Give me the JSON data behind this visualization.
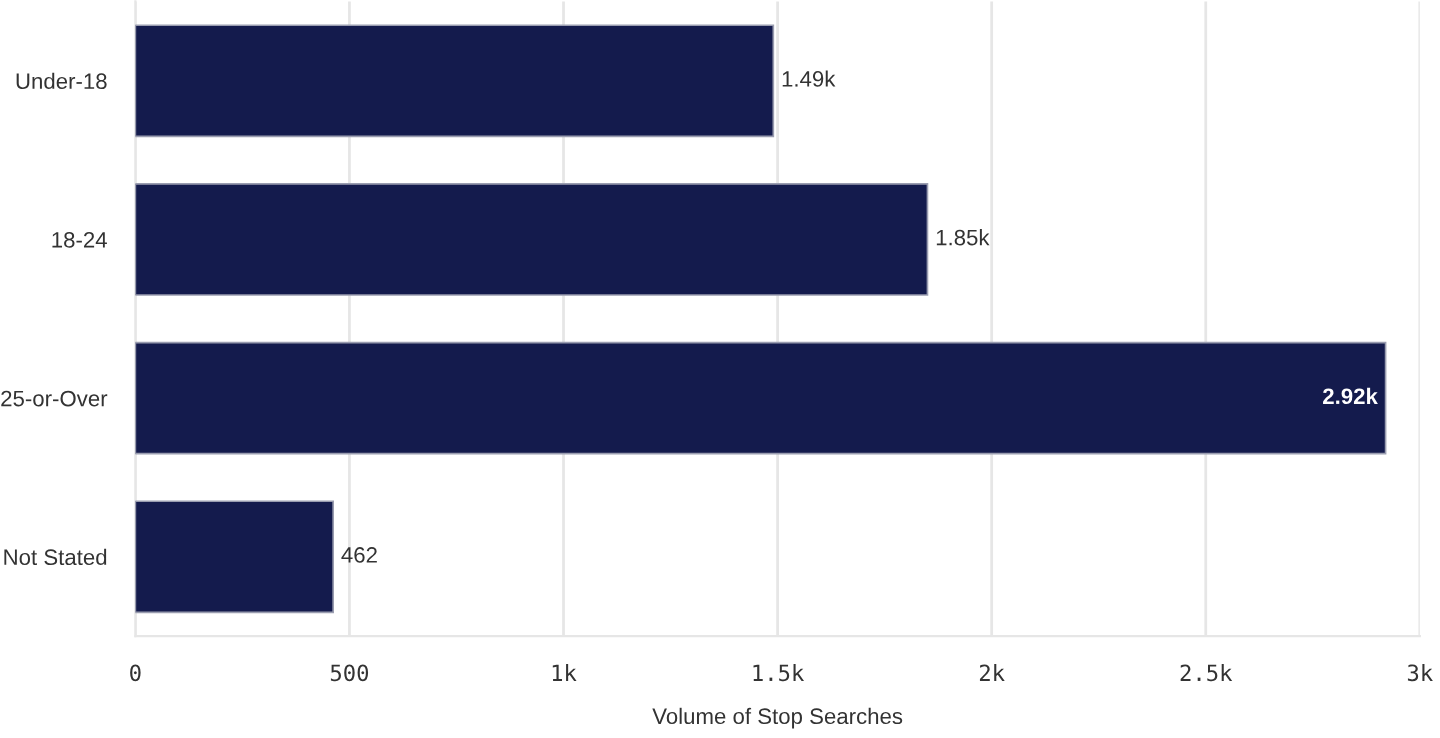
{
  "chart_data": {
    "type": "bar",
    "orientation": "horizontal",
    "xlabel": "Volume of Stop Searches",
    "categories": [
      "Under-18",
      "18-24",
      "25-or-Over",
      "Not Stated"
    ],
    "values": [
      1490,
      1850,
      2920,
      462
    ],
    "value_labels": [
      "1.49k",
      "1.85k",
      "2.92k",
      "462"
    ],
    "color": "#141b4d",
    "xlim": [
      0,
      3000
    ],
    "xticks": [
      0,
      500,
      {
        "value": 1000,
        "label": "1k"
      },
      {
        "value": 1500,
        "label": "1.5k"
      },
      {
        "value": 2000,
        "label": "2k"
      },
      {
        "value": 2500,
        "label": "2.5k"
      },
      {
        "value": 3000,
        "label": "3k"
      }
    ],
    "grid": "x",
    "legend": false
  }
}
